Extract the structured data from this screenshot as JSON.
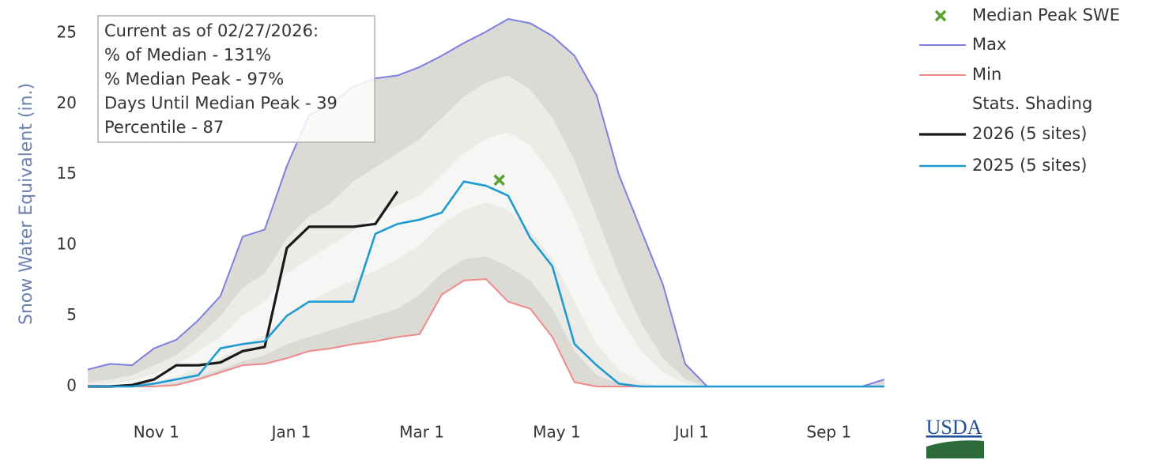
{
  "chart_data": {
    "type": "line",
    "y_label": "Snow Water Equivalent (in.)",
    "annotation": [
      "Current as of 02/27/2026:",
      "% of Median - 131%",
      "% Median Peak - 97%",
      "Days Until Median Peak - 39",
      "Percentile - 87"
    ],
    "logo": "USDA",
    "x": [
      0,
      10,
      20,
      30,
      40,
      50,
      60,
      70,
      80,
      90,
      100,
      110,
      120,
      130,
      140,
      150,
      160,
      170,
      180,
      190,
      200,
      210,
      220,
      230,
      240,
      250,
      260,
      270,
      280,
      290,
      300,
      310,
      320,
      330,
      340,
      350,
      360
    ],
    "xlim": [
      0,
      364
    ],
    "xticks": [
      {
        "value": 31,
        "label": "Nov 1"
      },
      {
        "value": 92,
        "label": "Jan 1"
      },
      {
        "value": 151,
        "label": "Mar 1"
      },
      {
        "value": 212,
        "label": "May 1"
      },
      {
        "value": 273,
        "label": "Jul 1"
      },
      {
        "value": 335,
        "label": "Sep 1"
      }
    ],
    "ylim": [
      0,
      26
    ],
    "yticks": [
      0,
      5,
      10,
      15,
      20,
      25
    ],
    "median_peak": {
      "name": "Median Peak SWE",
      "x": 186,
      "value": 14.6,
      "color": "#5aa02c"
    },
    "shading": {
      "name": "Stats. Shading",
      "colors": [
        "#dcdad5",
        "#ecebe8",
        "#f6f6f4"
      ],
      "bands": [
        {
          "lower": [
            0,
            0,
            0,
            0.1,
            0.3,
            0.7,
            1.2,
            1.8,
            2.2,
            3,
            3.5,
            4,
            4.5,
            5,
            5.5,
            6.5,
            8,
            9,
            9.2,
            8.5,
            7.5,
            5.5,
            2.5,
            0.8,
            0.2,
            0,
            0,
            0,
            0,
            0,
            0,
            0,
            0,
            0,
            0,
            0,
            0
          ],
          "upper": [
            0.3,
            0.5,
            0.8,
            1.5,
            2.2,
            3.5,
            5,
            7,
            8,
            10.5,
            12,
            13,
            14.5,
            15.5,
            16.5,
            17.5,
            19,
            20.5,
            21.5,
            22,
            21,
            19,
            16,
            12,
            8,
            4.5,
            2,
            0.5,
            0,
            0,
            0,
            0,
            0,
            0,
            0,
            0,
            0
          ]
        },
        {
          "lower": [
            0,
            0,
            0.1,
            0.3,
            0.7,
            1.3,
            2,
            3,
            3.6,
            5,
            6,
            6.8,
            7.5,
            8.2,
            9,
            10,
            11.5,
            12.5,
            13,
            12.5,
            11,
            9,
            6,
            3,
            1.2,
            0.3,
            0,
            0,
            0,
            0,
            0,
            0,
            0,
            0,
            0,
            0,
            0
          ],
          "upper": [
            0,
            0.2,
            0.4,
            0.9,
            1.5,
            2.5,
            3.5,
            5,
            6,
            8,
            9,
            10,
            11,
            12,
            12.8,
            13.5,
            15,
            16.5,
            17.5,
            18,
            17,
            15,
            12,
            8,
            5,
            2.5,
            1,
            0.2,
            0,
            0,
            0,
            0,
            0,
            0,
            0,
            0,
            0
          ]
        }
      ]
    },
    "series": [
      {
        "name": "Max",
        "color": "#7d80e0",
        "values": [
          1.2,
          1.6,
          1.5,
          2.7,
          3.3,
          4.7,
          6.4,
          10.6,
          11.1,
          15.6,
          19.2,
          20,
          21.2,
          21.8,
          22,
          22.6,
          23.4,
          24.3,
          25.1,
          26,
          25.7,
          24.8,
          23.4,
          20.6,
          15,
          11.1,
          7.2,
          1.6,
          0,
          0,
          0,
          0,
          0,
          0,
          0,
          0,
          0.5
        ]
      },
      {
        "name": "Min",
        "color": "#f08a8a",
        "values": [
          0,
          0,
          0,
          0,
          0.1,
          0.5,
          1,
          1.5,
          1.6,
          2,
          2.5,
          2.7,
          3,
          3.2,
          3.5,
          3.7,
          6.5,
          7.5,
          7.6,
          6,
          5.5,
          3.5,
          0.3,
          0,
          0,
          0,
          0,
          0,
          0,
          0,
          0,
          0,
          0,
          0,
          0,
          0,
          0
        ]
      },
      {
        "name": "2026 (5 sites)",
        "color": "#1a1a1a",
        "values": [
          0,
          0,
          0.1,
          0.5,
          1.5,
          1.5,
          1.7,
          2.5,
          2.8,
          9.8,
          11.3,
          11.3,
          11.3,
          11.5,
          13.8,
          null,
          null,
          null,
          null,
          null,
          null,
          null,
          null,
          null,
          null,
          null,
          null,
          null,
          null,
          null,
          null,
          null,
          null,
          null,
          null,
          null,
          null
        ]
      },
      {
        "name": "2025 (5 sites)",
        "color": "#1e9bd0",
        "values": [
          0,
          0,
          0,
          0.2,
          0.5,
          0.8,
          2.7,
          3,
          3.2,
          5,
          6,
          6,
          6,
          10.8,
          11.5,
          11.8,
          12.3,
          14.5,
          14.2,
          13.5,
          10.5,
          8.5,
          3,
          1.5,
          0.2,
          0,
          0,
          0,
          0,
          0,
          0,
          0,
          0,
          0,
          0,
          0,
          0
        ]
      }
    ]
  }
}
